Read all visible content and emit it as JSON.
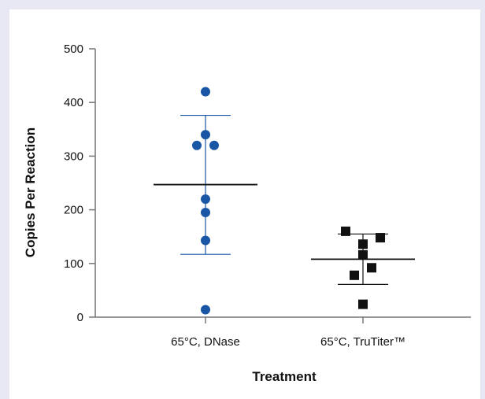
{
  "chart_data": {
    "type": "scatter",
    "title": "",
    "xlabel": "Treatment",
    "ylabel": "Copies Per Reaction",
    "ylim": [
      0,
      500
    ],
    "yticks": [
      0,
      100,
      200,
      300,
      400,
      500
    ],
    "grid": false,
    "categories": [
      "65°C, DNase",
      "65°C, TruTiter™"
    ],
    "series": [
      {
        "category": "65°C, DNase",
        "marker": "circle",
        "color": "#1a56a6",
        "points": [
          {
            "offset": 0.0,
            "value": 420
          },
          {
            "offset": 0.0,
            "value": 340
          },
          {
            "offset": -0.1,
            "value": 320
          },
          {
            "offset": 0.1,
            "value": 320
          },
          {
            "offset": 0.0,
            "value": 220
          },
          {
            "offset": 0.0,
            "value": 195
          },
          {
            "offset": 0.0,
            "value": 143
          },
          {
            "offset": 0.0,
            "value": 14
          }
        ],
        "mean": 247,
        "error_upper": 376,
        "error_lower": 117
      },
      {
        "category": "65°C, TruTiter™",
        "marker": "square",
        "color": "#111111",
        "points": [
          {
            "offset": -0.2,
            "value": 160
          },
          {
            "offset": 0.2,
            "value": 148
          },
          {
            "offset": 0.0,
            "value": 136
          },
          {
            "offset": 0.0,
            "value": 116
          },
          {
            "offset": 0.1,
            "value": 92
          },
          {
            "offset": -0.1,
            "value": 78
          },
          {
            "offset": 0.0,
            "value": 24
          }
        ],
        "mean": 108,
        "error_upper": 155,
        "error_lower": 61
      }
    ]
  }
}
